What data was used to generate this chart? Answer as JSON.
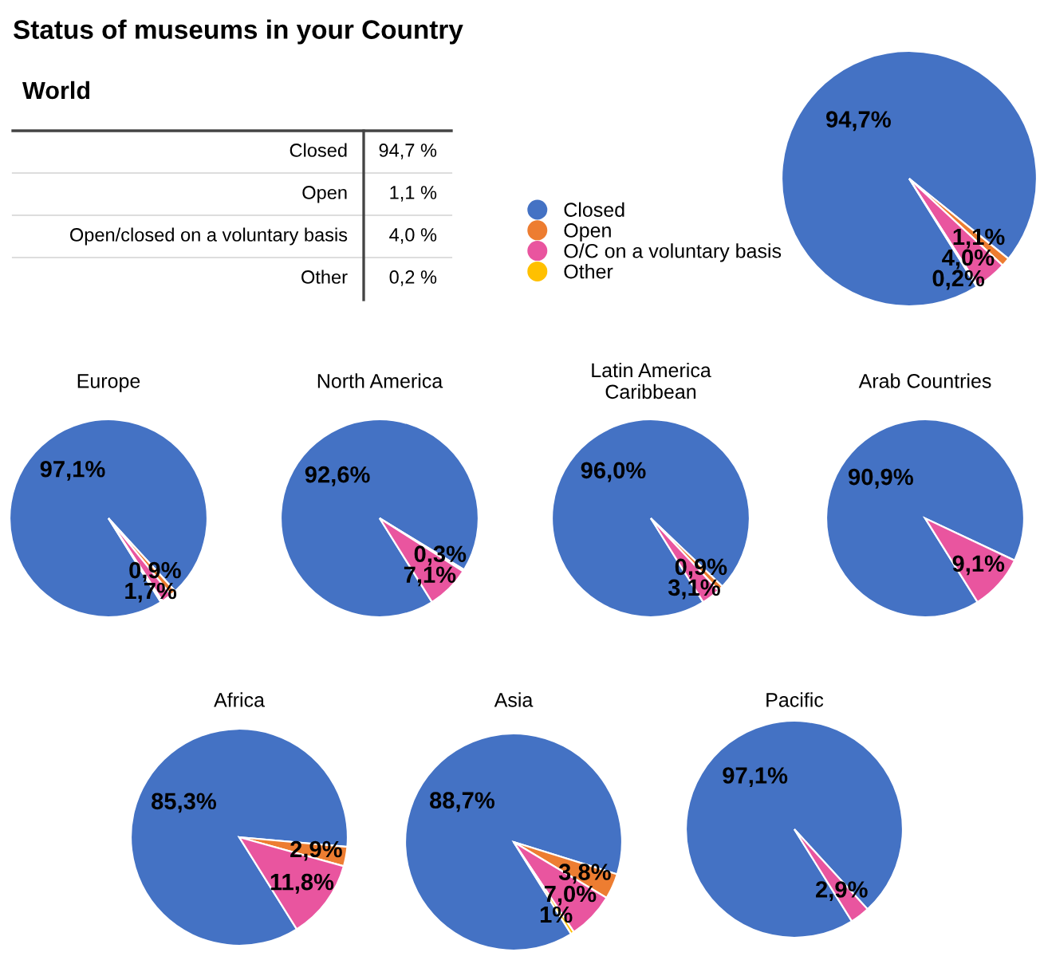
{
  "chart_data": [
    {
      "type": "other",
      "title": "Status of museums in your Country",
      "subtitle": "World",
      "categories": [
        "Closed",
        "Open",
        "Open/closed on a voluntary basis",
        "Other"
      ],
      "value_labels": [
        "94,7 %",
        "1,1 %",
        "4,0 %",
        "0,2 %"
      ]
    },
    {
      "type": "pie",
      "categories": [
        "Closed",
        "Open",
        "O/C on a voluntary basis",
        "Other"
      ],
      "values": [
        94.7,
        1.1,
        4.0,
        0.2
      ],
      "colors": [
        "#4472c4",
        "#ed7d31",
        "#e9559f",
        "#ffc000"
      ],
      "value_labels": [
        "94,7%",
        "1,1%",
        "4,0%",
        "0,2%"
      ],
      "legend": "left"
    },
    {
      "type": "pie",
      "title": "Europe",
      "categories": [
        null,
        null,
        null,
        null
      ],
      "values": [
        97.1,
        0.9,
        1.7,
        0.3
      ],
      "colors": [
        "#4472c4",
        "#ed7d31",
        "#e9559f",
        "#ffc000"
      ],
      "value_labels": [
        "97,1%",
        "0,9%",
        "1,7%",
        null
      ]
    },
    {
      "type": "pie",
      "title": "North America",
      "categories": [
        null,
        null,
        null
      ],
      "values": [
        92.6,
        0.3,
        7.1
      ],
      "colors": [
        "#4472c4",
        "#ed7d31",
        "#e9559f"
      ],
      "value_labels": [
        "92,6%",
        "0,3%",
        "7,1%"
      ]
    },
    {
      "type": "pie",
      "title": "Latin America\nCaribbean",
      "categories": [
        null,
        null,
        null
      ],
      "values": [
        96.0,
        0.9,
        3.1
      ],
      "colors": [
        "#4472c4",
        "#ed7d31",
        "#e9559f"
      ],
      "value_labels": [
        "96,0%",
        "0,9%",
        "3,1%"
      ]
    },
    {
      "type": "pie",
      "title": "Arab Countries",
      "categories": [
        null,
        null
      ],
      "values": [
        90.9,
        9.1
      ],
      "colors": [
        "#4472c4",
        "#e9559f"
      ],
      "value_labels": [
        "90,9%",
        "9,1%"
      ]
    },
    {
      "type": "pie",
      "title": "Africa",
      "categories": [
        null,
        null,
        null
      ],
      "values": [
        85.3,
        2.9,
        11.8
      ],
      "colors": [
        "#4472c4",
        "#ed7d31",
        "#e9559f"
      ],
      "value_labels": [
        "85,3%",
        "2,9%",
        "11,8%"
      ]
    },
    {
      "type": "pie",
      "title": "Asia",
      "categories": [
        null,
        null,
        null,
        null
      ],
      "values": [
        88.7,
        3.8,
        7.0,
        0.5
      ],
      "colors": [
        "#4472c4",
        "#ed7d31",
        "#e9559f",
        "#ffc000"
      ],
      "value_labels": [
        "88,7%",
        "3,8%",
        "7,0%",
        "1%"
      ]
    },
    {
      "type": "pie",
      "title": "Pacific",
      "categories": [
        null,
        null
      ],
      "values": [
        97.1,
        2.9
      ],
      "colors": [
        "#4472c4",
        "#e9559f"
      ],
      "value_labels": [
        "97,1%",
        "2,9%"
      ]
    }
  ]
}
